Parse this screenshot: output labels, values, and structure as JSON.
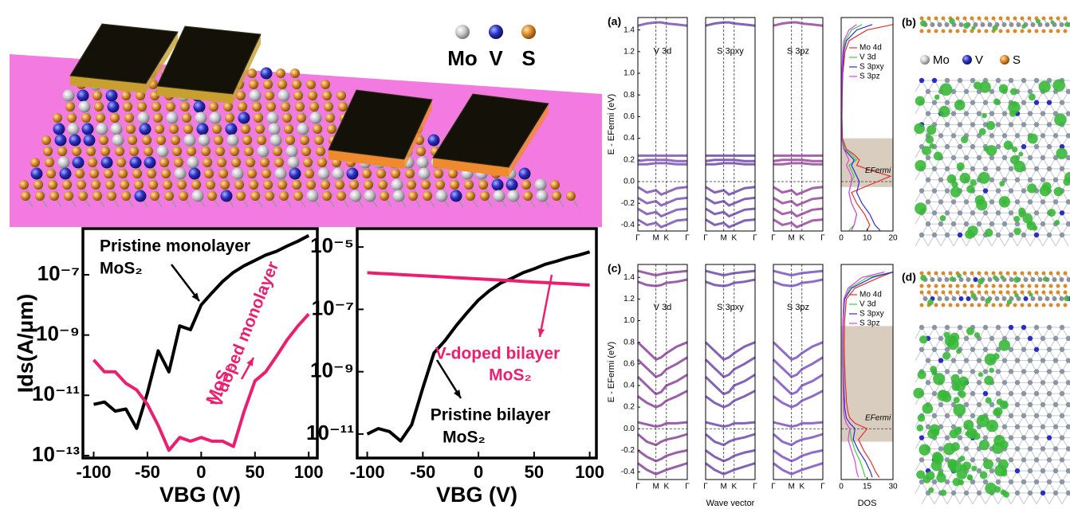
{
  "illustration": {
    "legend": [
      "Mo",
      "V",
      "S"
    ]
  },
  "chart_data": [
    {
      "type": "line",
      "log_y": true,
      "y_label": "Ids(A/μm)",
      "x_label": "VBG (V)",
      "xlim": [
        -110,
        108
      ],
      "xticks": [
        -100,
        -50,
        0,
        50,
        100
      ],
      "ylim": [
        8.3e-14,
        3.4e-06
      ],
      "yticks": [
        {
          "value": 1e-07,
          "label": "10⁻⁷"
        },
        {
          "value": 1e-09,
          "label": "10⁻⁹"
        },
        {
          "value": 1e-11,
          "label": "10⁻¹¹"
        },
        {
          "value": 1e-13,
          "label": "10⁻¹³"
        }
      ],
      "x": [
        -100,
        -90,
        -80,
        -70,
        -60,
        -50,
        -40,
        -30,
        -20,
        -10,
        0,
        10,
        20,
        30,
        40,
        50,
        60,
        70,
        80,
        90,
        100
      ],
      "series": [
        {
          "color": "#000000",
          "values": [
            5e-12,
            6e-12,
            3e-12,
            3.5e-12,
            8e-13,
            1.2e-11,
            3e-10,
            6e-11,
            2e-09,
            1.5e-09,
            1e-08,
            2.5e-08,
            6e-08,
            1.2e-07,
            2e-07,
            3e-07,
            4.5e-07,
            6e-07,
            9e-07,
            1.3e-06,
            2e-06
          ]
        },
        {
          "color": "#ea1f6f",
          "values": [
            1.5e-10,
            6e-11,
            6e-11,
            2.5e-11,
            1.5e-11,
            5e-12,
            1e-12,
            1.5e-13,
            4e-13,
            3e-13,
            4e-13,
            3e-13,
            3e-13,
            2e-13,
            3e-12,
            3e-11,
            6e-11,
            2e-10,
            7e-10,
            2e-09,
            5e-09
          ]
        }
      ],
      "annotations": [
        {
          "text": "Pristine monolayer",
          "color": "#000000"
        },
        {
          "text": "MoS₂",
          "color": "#000000"
        },
        {
          "text": "V-doped monolayer",
          "color": "#ea1f6f"
        },
        {
          "text": "MoS₂",
          "color": "#ea1f6f"
        }
      ]
    },
    {
      "type": "line",
      "log_y": true,
      "x_label": "VBG (V)",
      "xlim": [
        -109,
        106
      ],
      "xticks": [
        -100,
        -50,
        0,
        50,
        100
      ],
      "ylim": [
        1.7e-12,
        3.9e-05
      ],
      "yticks": [
        {
          "value": 1e-05,
          "label": "10⁻⁵"
        },
        {
          "value": 1e-07,
          "label": "10⁻⁷"
        },
        {
          "value": 1e-09,
          "label": "10⁻⁹"
        },
        {
          "value": 1e-11,
          "label": "10⁻¹¹"
        }
      ],
      "x": [
        -100,
        -90,
        -80,
        -70,
        -60,
        -50,
        -40,
        -30,
        -20,
        -10,
        0,
        10,
        20,
        30,
        40,
        50,
        60,
        70,
        80,
        90,
        100
      ],
      "series": [
        {
          "color": "#000000",
          "values": [
            1e-11,
            1.5e-11,
            1.2e-11,
            6e-12,
            2e-11,
            3e-10,
            4e-09,
            1e-08,
            3e-08,
            8e-08,
            2e-07,
            4e-07,
            7e-07,
            1e-06,
            1.5e-06,
            2e-06,
            2.8e-06,
            3.5e-06,
            4.5e-06,
            5.5e-06,
            7e-06
          ]
        },
        {
          "color": "#ea1f6f",
          "values": [
            1.5e-06,
            1.43e-06,
            1.37e-06,
            1.31e-06,
            1.25e-06,
            1.19e-06,
            1.14e-06,
            1.09e-06,
            1.04e-06,
            9.9e-07,
            9.5e-07,
            9.1e-07,
            8.7e-07,
            8.3e-07,
            7.9e-07,
            7.5e-07,
            7.2e-07,
            6.9e-07,
            6.6e-07,
            6.3e-07,
            6e-07
          ]
        }
      ],
      "annotations": [
        {
          "text": "V-doped bilayer",
          "color": "#ea1f6f"
        },
        {
          "text": "MoS₂",
          "color": "#ea1f6f"
        },
        {
          "text": "Pristine bilayer",
          "color": "#000000"
        },
        {
          "text": "MoS₂",
          "color": "#000000"
        }
      ]
    },
    {
      "type": "band",
      "panel_label": "(a)",
      "y_label": "E - EFermi (eV)",
      "ylim": [
        -0.456,
        1.515
      ],
      "yticks": [
        1.4,
        1.2,
        {
          "value": 1.0,
          "label": "1.0"
        },
        0.8,
        0.6,
        0.4,
        0.2,
        {
          "value": 0,
          "label": "0.0"
        },
        -0.2,
        -0.4
      ],
      "kticks": [
        {
          "value": 0,
          "label": "Γ"
        },
        {
          "value": 1,
          "label": "M"
        },
        {
          "value": 1.577,
          "label": "K"
        },
        {
          "value": 2.732,
          "label": "Γ"
        }
      ],
      "k": [
        0,
        0.5,
        1,
        1.29,
        1.577,
        2.15,
        2.732
      ],
      "subpanels": [
        {
          "label": "V 3d",
          "color": "#6a3aa8"
        },
        {
          "label": "S 3pxy",
          "color": "#5a2f9e"
        },
        {
          "label": "S 3pz",
          "color": "#8a2f8e"
        }
      ],
      "bands": [
        {
          "values": [
            1.44,
            1.46,
            1.47,
            1.47,
            1.46,
            1.45,
            1.44
          ]
        },
        {
          "values": [
            0.24,
            0.24,
            0.24,
            0.24,
            0.24,
            0.24,
            0.24
          ]
        },
        {
          "values": [
            0.19,
            0.2,
            0.2,
            0.2,
            0.2,
            0.19,
            0.19
          ]
        },
        {
          "values": [
            0.16,
            0.16,
            0.17,
            0.17,
            0.17,
            0.16,
            0.16
          ]
        },
        {
          "values": [
            -0.05,
            -0.1,
            -0.08,
            -0.12,
            -0.1,
            -0.06,
            -0.05
          ]
        },
        {
          "values": [
            -0.15,
            -0.2,
            -0.18,
            -0.22,
            -0.2,
            -0.16,
            -0.15
          ]
        },
        {
          "values": [
            -0.25,
            -0.3,
            -0.28,
            -0.32,
            -0.3,
            -0.26,
            -0.25
          ]
        },
        {
          "values": [
            -0.35,
            -0.4,
            -0.38,
            -0.42,
            -0.4,
            -0.36,
            -0.35
          ]
        }
      ],
      "dos": {
        "xlim": [
          0,
          20
        ],
        "xticks": [
          0,
          10,
          20
        ],
        "shade": [
          -0.05,
          0.4
        ],
        "fermi": 0,
        "fermi_label": "EFermi",
        "energies": [
          -0.45,
          -0.4,
          -0.3,
          -0.2,
          -0.1,
          0,
          0.05,
          0.1,
          0.15,
          0.2,
          0.25,
          0.3,
          0.4,
          0.6,
          0.8,
          1.0,
          1.2,
          1.3,
          1.4,
          1.45
        ],
        "series": [
          {
            "name": "Mo 4d",
            "color": "#e0312d",
            "values": [
              10,
              11,
              9,
              6,
              4,
              14,
              19,
              12,
              6,
              7,
              5,
              2,
              0.5,
              0.3,
              0.4,
              0.6,
              1.5,
              3,
              10,
              20
            ]
          },
          {
            "name": "V 3d",
            "color": "#3dcf3d",
            "values": [
              3,
              5,
              6,
              4,
              3,
              4,
              5,
              4,
              3,
              6,
              4,
              1.5,
              0.3,
              0.2,
              0.2,
              0.3,
              0.8,
              1.5,
              4,
              8
            ]
          },
          {
            "name": "S 3pxy",
            "color": "#2b2bd8",
            "values": [
              15,
              13,
              11,
              8,
              6,
              7,
              6,
              5,
              4,
              5,
              3,
              1,
              0.3,
              0.2,
              0.3,
              0.5,
              1,
              2,
              6,
              12
            ]
          },
          {
            "name": "S 3pz",
            "color": "#e040e0",
            "values": [
              4,
              5,
              6,
              4,
              3,
              4,
              4,
              3,
              2,
              3,
              2,
              1,
              0.2,
              0.1,
              0.2,
              0.3,
              0.6,
              1,
              3,
              6
            ]
          }
        ]
      }
    },
    {
      "type": "band",
      "panel_label": "(c)",
      "y_label": "E - EFermi (eV)",
      "x_label": "Wave vector",
      "ylim": [
        -0.47,
        1.52
      ],
      "yticks": [
        1.4,
        1.2,
        {
          "value": 1.0,
          "label": "1.0"
        },
        0.8,
        0.6,
        0.4,
        0.2,
        {
          "value": 0,
          "label": "0.0"
        },
        -0.2,
        -0.4
      ],
      "kticks": [
        {
          "value": 0,
          "label": "Γ"
        },
        {
          "value": 1,
          "label": "M"
        },
        {
          "value": 1.577,
          "label": "K"
        },
        {
          "value": 2.732,
          "label": "Γ"
        }
      ],
      "k": [
        0,
        0.5,
        1,
        1.29,
        1.577,
        2.15,
        2.732
      ],
      "subpanels": [
        {
          "label": "V 3d",
          "color": "#7a2a8e"
        },
        {
          "label": "S 3pxy",
          "color": "#5a2f9e"
        },
        {
          "label": "S 3pz",
          "color": "#6a3ab8"
        }
      ],
      "bands": [
        {
          "values": [
            1.46,
            1.44,
            1.42,
            1.43,
            1.44,
            1.45,
            1.46
          ]
        },
        {
          "values": [
            1.36,
            1.33,
            1.32,
            1.33,
            1.35,
            1.36,
            1.38
          ]
        },
        {
          "values": [
            0.8,
            0.72,
            0.64,
            0.66,
            0.7,
            0.76,
            0.8
          ]
        },
        {
          "values": [
            0.64,
            0.56,
            0.48,
            0.5,
            0.55,
            0.6,
            0.66
          ]
        },
        {
          "values": [
            0.48,
            0.4,
            0.32,
            0.34,
            0.4,
            0.44,
            0.5
          ]
        },
        {
          "values": [
            0.3,
            0.24,
            0.2,
            0.22,
            0.26,
            0.3,
            0.35
          ]
        },
        {
          "values": [
            0.06,
            0.04,
            0.02,
            0.03,
            0.05,
            0.05,
            0.06
          ]
        },
        {
          "values": [
            -0.05,
            -0.12,
            -0.15,
            -0.12,
            -0.1,
            -0.08,
            -0.05
          ]
        },
        {
          "values": [
            -0.2,
            -0.26,
            -0.3,
            -0.28,
            -0.25,
            -0.22,
            -0.2
          ]
        },
        {
          "values": [
            -0.32,
            -0.38,
            -0.42,
            -0.4,
            -0.38,
            -0.35,
            -0.32
          ]
        }
      ],
      "dos": {
        "x_label": "DOS",
        "xlim": [
          0,
          30
        ],
        "xticks": [
          0,
          15,
          30
        ],
        "shade": [
          -0.12,
          0.95
        ],
        "fermi": 0,
        "fermi_label": "EFermi",
        "energies": [
          -0.45,
          -0.4,
          -0.3,
          -0.2,
          -0.1,
          0,
          0.05,
          0.1,
          0.15,
          0.2,
          0.25,
          0.3,
          0.4,
          0.6,
          0.8,
          1.0,
          1.2,
          1.3,
          1.4,
          1.45
        ],
        "series": [
          {
            "name": "Mo 4d",
            "color": "#e0312d",
            "values": [
              22,
              20,
              17,
              13,
              10,
              15,
              8,
              5,
              4,
              3.5,
              3,
              3,
              2.5,
              2,
              1.8,
              2,
              3,
              8,
              22,
              30
            ]
          },
          {
            "name": "V 3d",
            "color": "#3dcf3d",
            "values": [
              14,
              13,
              11,
              8,
              6,
              5,
              3,
              2,
              1.5,
              1.4,
              1.3,
              1.2,
              1,
              0.8,
              0.8,
              1,
              2,
              5,
              15,
              30
            ]
          },
          {
            "name": "S 3pxy",
            "color": "#2b2bd8",
            "values": [
              18,
              17,
              14,
              10,
              7,
              8,
              5,
              3,
              2.5,
              2,
              2,
              1.8,
              1.5,
              1.2,
              1,
              1.2,
              2,
              6,
              18,
              30
            ]
          },
          {
            "name": "S 3pz",
            "color": "#e040e0",
            "values": [
              10,
              9,
              8,
              6,
              4,
              5,
              3,
              2,
              1.5,
              1.5,
              1.4,
              1.3,
              1.2,
              1,
              0.9,
              1,
              1.5,
              4,
              12,
              25
            ]
          }
        ]
      }
    }
  ],
  "structures": [
    {
      "panel_label": "(b)",
      "legend": [
        "Mo",
        "V",
        "S"
      ]
    },
    {
      "panel_label": "(d)"
    }
  ]
}
